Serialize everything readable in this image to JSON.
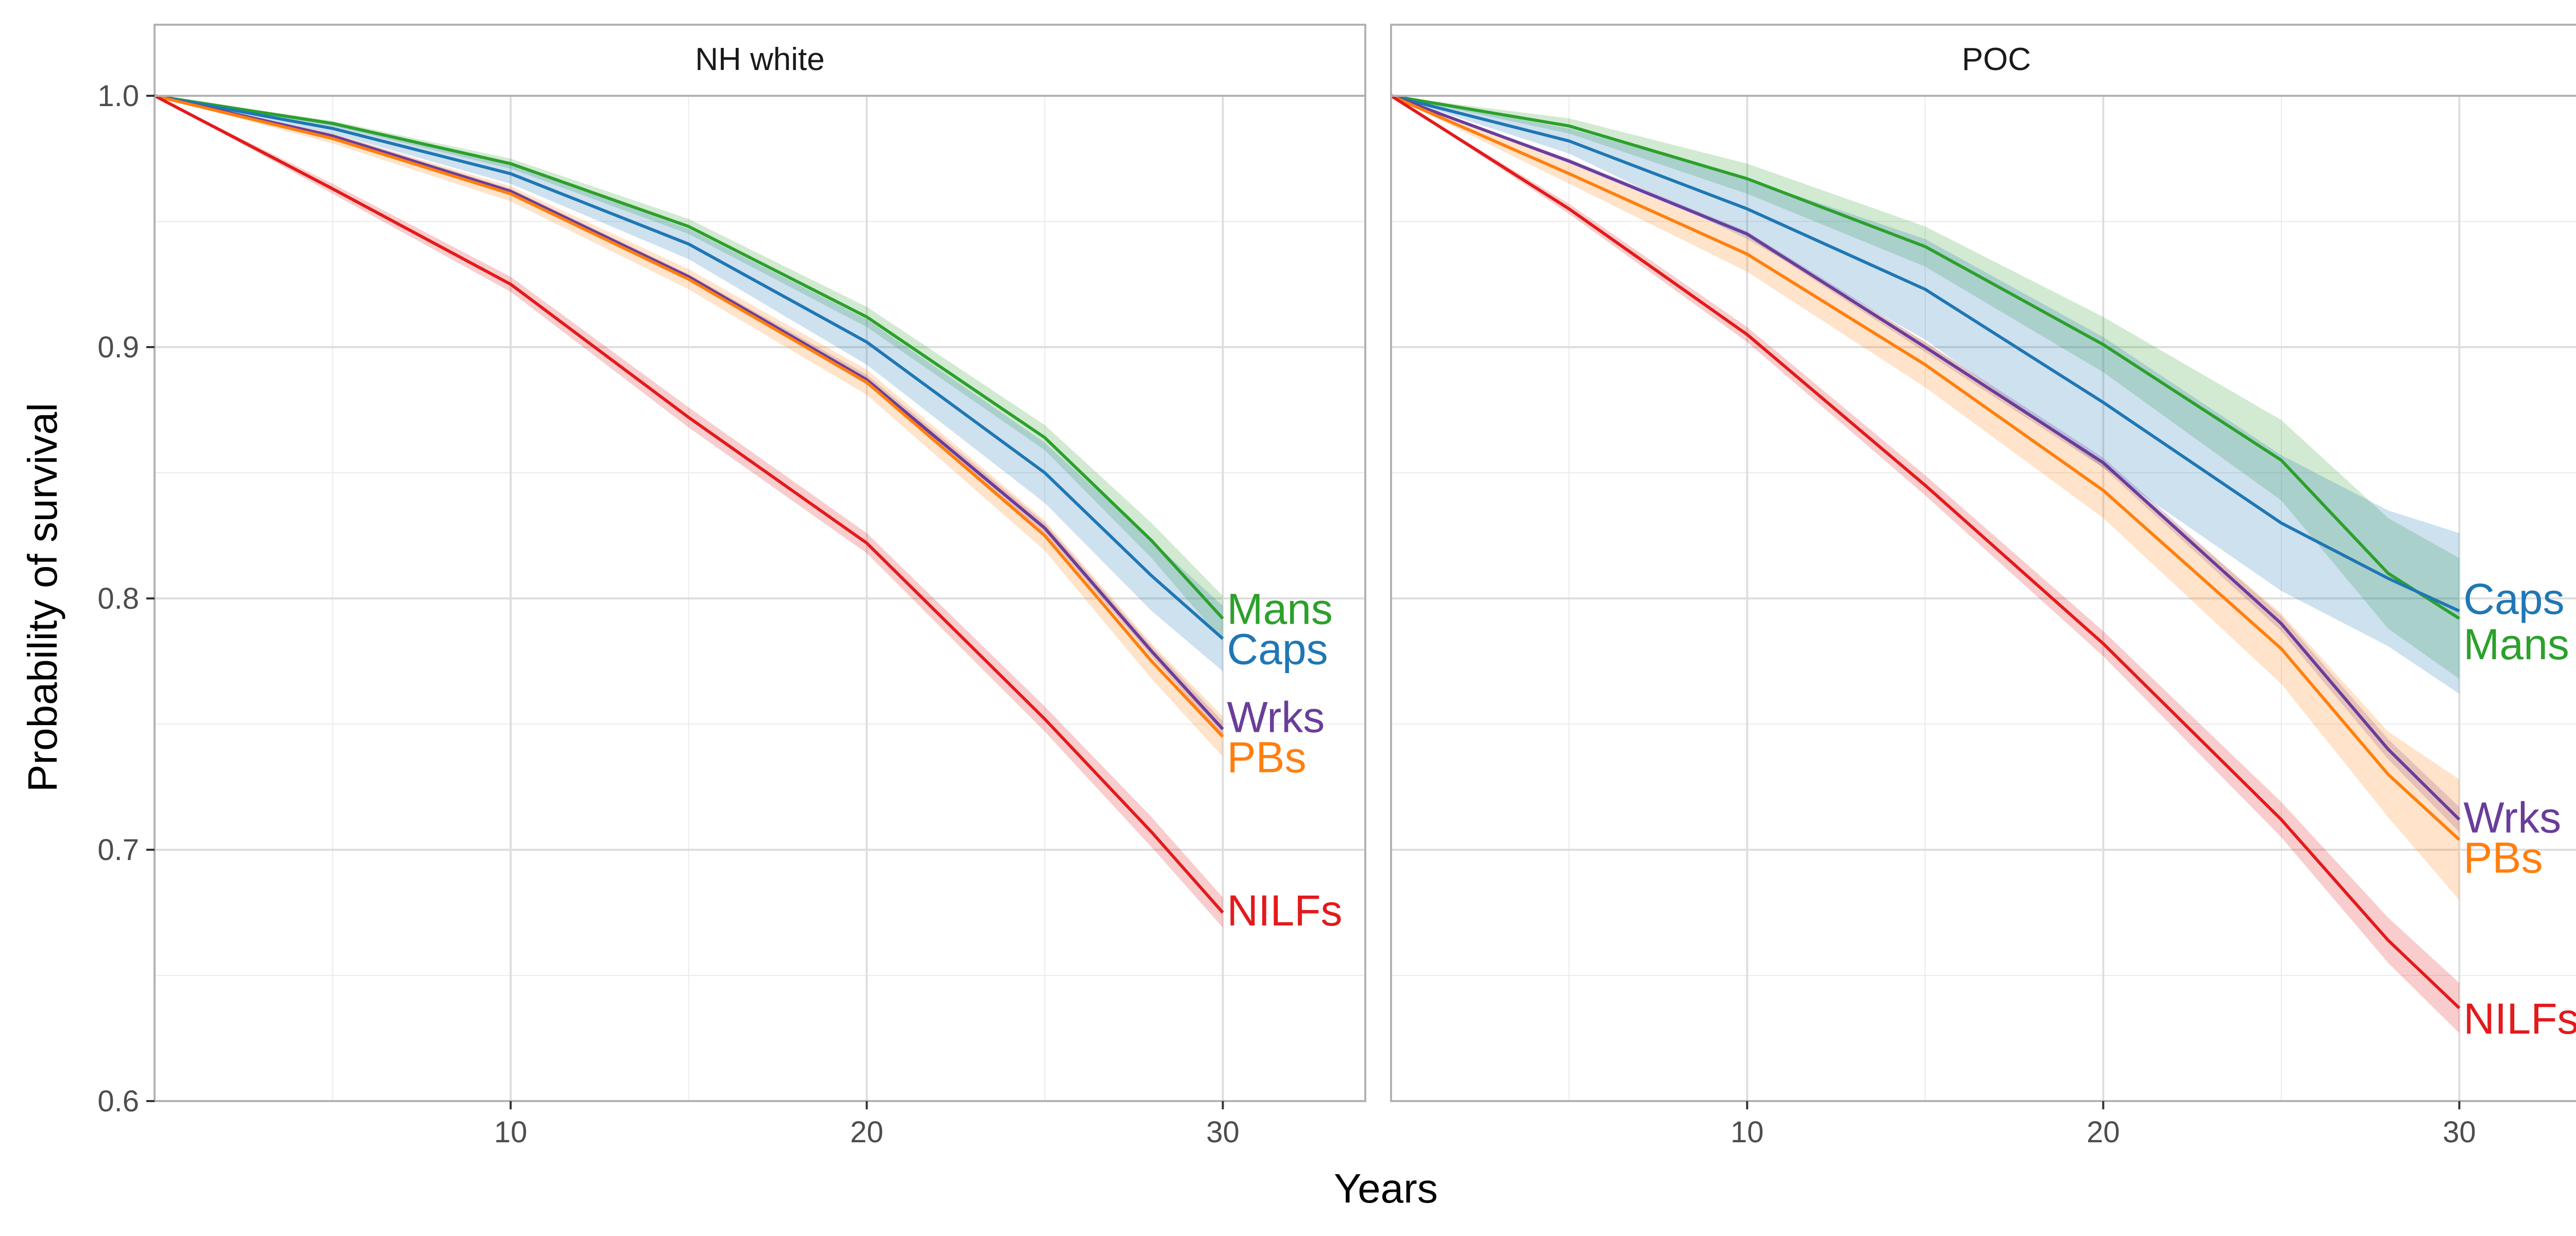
{
  "chart_data": {
    "type": "line",
    "subtype": "survival curves with confidence bands, faceted",
    "xlabel": "Years",
    "ylabel": "Probability of survival",
    "xlim": [
      0,
      34
    ],
    "ylim": [
      0.6,
      1.0
    ],
    "x_ticks": [
      10,
      20,
      30
    ],
    "y_ticks": [
      0.6,
      0.7,
      0.8,
      0.9,
      1.0
    ],
    "y_tick_labels": [
      "0.6",
      "0.7",
      "0.8",
      "0.9",
      "1.0"
    ],
    "grid": true,
    "legend": "direct labels at line ends",
    "colors": {
      "Mans": "#2ca02c",
      "Caps": "#1f77b4",
      "Wrks": "#6a3d9a",
      "PBs": "#ff7f0e",
      "NILFs": "#e31a1c"
    },
    "facets": [
      {
        "title": "NH white",
        "series": [
          {
            "name": "Mans",
            "x": [
              0,
              5,
              10,
              15,
              20,
              25,
              28,
              30
            ],
            "y": [
              1.0,
              0.989,
              0.973,
              0.948,
              0.912,
              0.864,
              0.823,
              0.792
            ],
            "lower": [
              1.0,
              0.988,
              0.971,
              0.945,
              0.908,
              0.859,
              0.816,
              0.783
            ],
            "upper": [
              1.0,
              0.99,
              0.975,
              0.951,
              0.916,
              0.869,
              0.83,
              0.801
            ]
          },
          {
            "name": "Caps",
            "x": [
              0,
              5,
              10,
              15,
              20,
              25,
              28,
              30
            ],
            "y": [
              1.0,
              0.987,
              0.969,
              0.941,
              0.902,
              0.85,
              0.809,
              0.784
            ],
            "lower": [
              1.0,
              0.985,
              0.965,
              0.935,
              0.893,
              0.838,
              0.795,
              0.771
            ],
            "upper": [
              1.0,
              0.989,
              0.973,
              0.947,
              0.911,
              0.862,
              0.823,
              0.797
            ]
          },
          {
            "name": "Wrks",
            "x": [
              0,
              5,
              10,
              15,
              20,
              25,
              28,
              30
            ],
            "y": [
              1.0,
              0.984,
              0.962,
              0.928,
              0.887,
              0.828,
              0.779,
              0.748
            ],
            "lower": [
              1.0,
              0.983,
              0.961,
              0.927,
              0.885,
              0.826,
              0.777,
              0.745
            ],
            "upper": [
              1.0,
              0.985,
              0.963,
              0.929,
              0.889,
              0.83,
              0.781,
              0.751
            ]
          },
          {
            "name": "PBs",
            "x": [
              0,
              5,
              10,
              15,
              20,
              25,
              28,
              30
            ],
            "y": [
              1.0,
              0.983,
              0.961,
              0.927,
              0.886,
              0.825,
              0.775,
              0.745
            ],
            "lower": [
              1.0,
              0.981,
              0.958,
              0.923,
              0.881,
              0.819,
              0.768,
              0.737
            ],
            "upper": [
              1.0,
              0.985,
              0.964,
              0.931,
              0.891,
              0.831,
              0.782,
              0.753
            ]
          },
          {
            "name": "NILFs",
            "x": [
              0,
              5,
              10,
              15,
              20,
              25,
              28,
              30
            ],
            "y": [
              1.0,
              0.963,
              0.925,
              0.872,
              0.822,
              0.752,
              0.707,
              0.675
            ],
            "lower": [
              1.0,
              0.961,
              0.922,
              0.868,
              0.818,
              0.747,
              0.701,
              0.669
            ],
            "upper": [
              1.0,
              0.965,
              0.928,
              0.876,
              0.826,
              0.757,
              0.713,
              0.681
            ]
          }
        ],
        "end_labels": [
          {
            "series": "Mans",
            "text": "Mans",
            "y": 0.796
          },
          {
            "series": "Caps",
            "text": "Caps",
            "y": 0.78
          },
          {
            "series": "Wrks",
            "text": "Wrks",
            "y": 0.753
          },
          {
            "series": "PBs",
            "text": "PBs",
            "y": 0.737
          },
          {
            "series": "NILFs",
            "text": "NILFs",
            "y": 0.676
          }
        ]
      },
      {
        "title": "POC",
        "series": [
          {
            "name": "Mans",
            "x": [
              0,
              5,
              10,
              15,
              20,
              25,
              28,
              30
            ],
            "y": [
              1.0,
              0.988,
              0.967,
              0.94,
              0.901,
              0.855,
              0.81,
              0.792
            ],
            "lower": [
              1.0,
              0.985,
              0.961,
              0.932,
              0.89,
              0.839,
              0.788,
              0.768
            ],
            "upper": [
              1.0,
              0.991,
              0.973,
              0.948,
              0.912,
              0.871,
              0.832,
              0.816
            ]
          },
          {
            "name": "Caps",
            "x": [
              0,
              5,
              10,
              15,
              20,
              25,
              28,
              30
            ],
            "y": [
              1.0,
              0.982,
              0.955,
              0.923,
              0.878,
              0.83,
              0.808,
              0.795
            ],
            "lower": [
              1.0,
              0.977,
              0.943,
              0.903,
              0.852,
              0.803,
              0.781,
              0.762
            ],
            "upper": [
              1.0,
              0.987,
              0.967,
              0.943,
              0.904,
              0.857,
              0.835,
              0.826
            ]
          },
          {
            "name": "Wrks",
            "x": [
              0,
              5,
              10,
              15,
              20,
              25,
              28,
              30
            ],
            "y": [
              1.0,
              0.974,
              0.945,
              0.9,
              0.854,
              0.79,
              0.74,
              0.712
            ],
            "lower": [
              1.0,
              0.973,
              0.944,
              0.898,
              0.852,
              0.787,
              0.736,
              0.707
            ],
            "upper": [
              1.0,
              0.975,
              0.946,
              0.902,
              0.856,
              0.793,
              0.744,
              0.717
            ]
          },
          {
            "name": "PBs",
            "x": [
              0,
              5,
              10,
              15,
              20,
              25,
              28,
              30
            ],
            "y": [
              1.0,
              0.969,
              0.937,
              0.893,
              0.843,
              0.78,
              0.73,
              0.704
            ],
            "lower": [
              1.0,
              0.965,
              0.93,
              0.884,
              0.832,
              0.766,
              0.713,
              0.68
            ],
            "upper": [
              1.0,
              0.973,
              0.944,
              0.902,
              0.854,
              0.794,
              0.747,
              0.728
            ]
          },
          {
            "name": "NILFs",
            "x": [
              0,
              5,
              10,
              15,
              20,
              25,
              28,
              30
            ],
            "y": [
              1.0,
              0.955,
              0.905,
              0.845,
              0.782,
              0.712,
              0.664,
              0.637
            ],
            "lower": [
              1.0,
              0.953,
              0.902,
              0.841,
              0.777,
              0.705,
              0.655,
              0.627
            ],
            "upper": [
              1.0,
              0.957,
              0.908,
              0.849,
              0.787,
              0.719,
              0.673,
              0.647
            ]
          }
        ],
        "end_labels": [
          {
            "series": "Caps",
            "text": "Caps",
            "y": 0.8
          },
          {
            "series": "Mans",
            "text": "Mans",
            "y": 0.782
          },
          {
            "series": "Wrks",
            "text": "Wrks",
            "y": 0.713
          },
          {
            "series": "PBs",
            "text": "PBs",
            "y": 0.697
          },
          {
            "series": "NILFs",
            "text": "NILFs",
            "y": 0.633
          }
        ]
      }
    ]
  }
}
